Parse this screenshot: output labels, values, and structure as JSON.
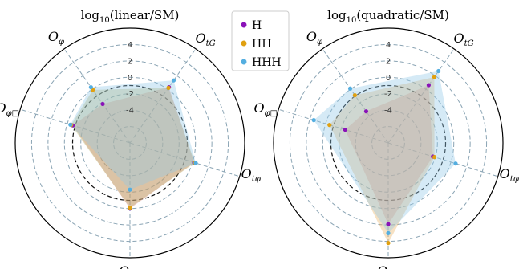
{
  "legend": [
    {
      "label": "H",
      "color": "#8a12b8"
    },
    {
      "label": "HH",
      "color": "#e0a010"
    },
    {
      "label": "HHH",
      "color": "#54aee0"
    }
  ],
  "chart_data": [
    {
      "type": "radar",
      "title": "log10(linear/SM)",
      "title_parts": {
        "pre": "log",
        "sub": "10",
        "post": "(linear/SM)"
      },
      "rlim": [
        -8,
        6
      ],
      "ticks": [
        4,
        2,
        0,
        -2,
        -4
      ],
      "tick_labels": [
        "4",
        "2",
        "0",
        "-2",
        "-4"
      ],
      "reference_circle": -1,
      "axes": [
        {
          "symbol": "O",
          "sub": "tG"
        },
        {
          "symbol": "O",
          "sub": "tφ"
        },
        {
          "symbol": "O",
          "sub": "φG"
        },
        {
          "symbol": "O",
          "sub": "φ□"
        },
        {
          "symbol": "O",
          "sub": "φ"
        }
      ],
      "fill_colors": [
        "#d88080",
        "#b8b060",
        "#90c8e8"
      ],
      "series": [
        {
          "name": "H",
          "values": [
            0.3,
            0.2,
            0.0,
            -0.7,
            -2.2
          ]
        },
        {
          "name": "HH",
          "values": [
            0.2,
            0.3,
            -0.1,
            -0.5,
            -0.1
          ]
        },
        {
          "name": "HHH",
          "values": [
            1.3,
            0.4,
            -2.3,
            -0.4,
            0.3
          ]
        }
      ]
    },
    {
      "type": "radar",
      "title": "log10(quadratic/SM)",
      "title_parts": {
        "pre": "log",
        "sub": "10",
        "post": "(quadratic/SM)"
      },
      "rlim": [
        -8,
        6
      ],
      "ticks": [
        4,
        2,
        0,
        -2,
        -4
      ],
      "tick_labels": [
        "4",
        "2",
        "0",
        "-2",
        "-4"
      ],
      "reference_circle": -1,
      "axes": [
        {
          "symbol": "O",
          "sub": "tG"
        },
        {
          "symbol": "O",
          "sub": "tφ"
        },
        {
          "symbol": "O",
          "sub": "φG"
        },
        {
          "symbol": "O",
          "sub": "φ□"
        },
        {
          "symbol": "O",
          "sub": "φ"
        }
      ],
      "fill_colors": [
        "#d88080",
        "#e8b060",
        "#90c8e8"
      ],
      "series": [
        {
          "name": "H",
          "values": [
            0.6,
            -2.3,
            1.9,
            -2.5,
            -3.3
          ]
        },
        {
          "name": "HH",
          "values": [
            1.8,
            -2.1,
            4.2,
            -0.5,
            -0.9
          ]
        },
        {
          "name": "HHH",
          "values": [
            2.7,
            0.6,
            3.0,
            1.5,
            0.1
          ]
        }
      ]
    }
  ]
}
